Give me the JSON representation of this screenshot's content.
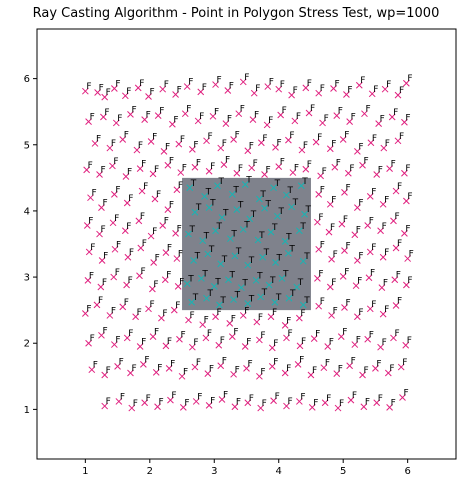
{
  "chart_data": {
    "type": "scatter",
    "title": "Ray Casting Algorithm - Point in Polygon Stress Test, wp=1000",
    "xlabel": "",
    "ylabel": "",
    "xlim": [
      0.25,
      6.75
    ],
    "ylim": [
      0.25,
      6.75
    ],
    "xticks": [
      1,
      2,
      3,
      4,
      5,
      6
    ],
    "yticks": [
      1,
      2,
      3,
      4,
      5,
      6
    ],
    "xtick_labels": [
      "1",
      "2",
      "3",
      "4",
      "5",
      "6"
    ],
    "ytick_labels": [
      "1",
      "2",
      "3",
      "4",
      "5",
      "6"
    ],
    "grid": false,
    "polygon": {
      "vertices": [
        [
          2.5,
          2.5
        ],
        [
          4.5,
          2.5
        ],
        [
          4.5,
          4.5
        ],
        [
          2.5,
          4.5
        ]
      ],
      "fill_color": "#7f828c"
    },
    "outside_marker": {
      "symbol": "x",
      "color": "#e0207f",
      "label": "F"
    },
    "inside_marker": {
      "symbol": "x",
      "color": "#1ab3b3",
      "label": "T"
    },
    "label_color": "#000000",
    "points": [
      [
        1.0,
        5.81,
        "F"
      ],
      [
        1.19,
        5.79,
        "F"
      ],
      [
        1.3,
        5.72,
        "F"
      ],
      [
        1.45,
        5.85,
        "F"
      ],
      [
        1.62,
        5.74,
        "F"
      ],
      [
        1.82,
        5.86,
        "F"
      ],
      [
        1.98,
        5.73,
        "F"
      ],
      [
        2.2,
        5.84,
        "F"
      ],
      [
        2.4,
        5.76,
        "F"
      ],
      [
        2.58,
        5.88,
        "F"
      ],
      [
        2.79,
        5.8,
        "F"
      ],
      [
        3.02,
        5.91,
        "F"
      ],
      [
        3.21,
        5.82,
        "F"
      ],
      [
        3.45,
        5.95,
        "F"
      ],
      [
        3.62,
        5.78,
        "F"
      ],
      [
        3.83,
        5.88,
        "F"
      ],
      [
        4.0,
        5.84,
        "F"
      ],
      [
        4.2,
        5.75,
        "F"
      ],
      [
        4.42,
        5.86,
        "F"
      ],
      [
        4.62,
        5.78,
        "F"
      ],
      [
        4.85,
        5.85,
        "F"
      ],
      [
        5.05,
        5.76,
        "F"
      ],
      [
        5.25,
        5.9,
        "F"
      ],
      [
        5.45,
        5.77,
        "F"
      ],
      [
        5.65,
        5.84,
        "F"
      ],
      [
        5.85,
        5.75,
        "F"
      ],
      [
        5.98,
        5.93,
        "F"
      ],
      [
        1.05,
        5.35,
        "F"
      ],
      [
        1.28,
        5.42,
        "F"
      ],
      [
        1.48,
        5.33,
        "F"
      ],
      [
        1.7,
        5.46,
        "F"
      ],
      [
        1.92,
        5.38,
        "F"
      ],
      [
        2.13,
        5.44,
        "F"
      ],
      [
        2.35,
        5.31,
        "F"
      ],
      [
        2.55,
        5.47,
        "F"
      ],
      [
        2.75,
        5.36,
        "F"
      ],
      [
        2.98,
        5.43,
        "F"
      ],
      [
        3.18,
        5.32,
        "F"
      ],
      [
        3.38,
        5.47,
        "F"
      ],
      [
        3.6,
        5.38,
        "F"
      ],
      [
        3.82,
        5.3,
        "F"
      ],
      [
        4.03,
        5.45,
        "F"
      ],
      [
        4.25,
        5.36,
        "F"
      ],
      [
        4.47,
        5.48,
        "F"
      ],
      [
        4.68,
        5.33,
        "F"
      ],
      [
        4.9,
        5.44,
        "F"
      ],
      [
        5.1,
        5.35,
        "F"
      ],
      [
        5.33,
        5.47,
        "F"
      ],
      [
        5.55,
        5.32,
        "F"
      ],
      [
        5.76,
        5.42,
        "F"
      ],
      [
        5.95,
        5.34,
        "F"
      ],
      [
        1.15,
        5.02,
        "F"
      ],
      [
        1.38,
        4.95,
        "F"
      ],
      [
        1.58,
        5.08,
        "F"
      ],
      [
        1.8,
        4.92,
        "F"
      ],
      [
        2.02,
        5.05,
        "F"
      ],
      [
        2.22,
        4.9,
        "F"
      ],
      [
        2.45,
        5.01,
        "F"
      ],
      [
        2.66,
        4.93,
        "F"
      ],
      [
        2.88,
        5.06,
        "F"
      ],
      [
        3.1,
        4.95,
        "F"
      ],
      [
        3.3,
        5.08,
        "F"
      ],
      [
        3.52,
        4.91,
        "F"
      ],
      [
        3.73,
        5.03,
        "F"
      ],
      [
        3.95,
        4.96,
        "F"
      ],
      [
        4.15,
        5.07,
        "F"
      ],
      [
        4.36,
        4.92,
        "F"
      ],
      [
        4.58,
        5.04,
        "F"
      ],
      [
        4.8,
        4.94,
        "F"
      ],
      [
        5.0,
        5.08,
        "F"
      ],
      [
        5.22,
        4.9,
        "F"
      ],
      [
        5.43,
        5.03,
        "F"
      ],
      [
        5.63,
        4.95,
        "F"
      ],
      [
        5.85,
        5.06,
        "F"
      ],
      [
        1.02,
        4.62,
        "F"
      ],
      [
        1.22,
        4.55,
        "F"
      ],
      [
        1.42,
        4.68,
        "F"
      ],
      [
        1.63,
        4.52,
        "F"
      ],
      [
        1.85,
        4.64,
        "F"
      ],
      [
        2.05,
        4.56,
        "F"
      ],
      [
        2.28,
        4.69,
        "F"
      ],
      [
        2.48,
        4.58,
        "F"
      ],
      [
        2.7,
        4.66,
        "F"
      ],
      [
        2.92,
        4.6,
        "F"
      ],
      [
        3.15,
        4.7,
        "F"
      ],
      [
        3.35,
        4.57,
        "F"
      ],
      [
        3.58,
        4.65,
        "F"
      ],
      [
        3.78,
        4.55,
        "F"
      ],
      [
        4.0,
        4.67,
        "F"
      ],
      [
        4.22,
        4.58,
        "F"
      ],
      [
        4.42,
        4.63,
        "F"
      ],
      [
        4.65,
        4.53,
        "F"
      ],
      [
        4.87,
        4.66,
        "F"
      ],
      [
        5.08,
        4.57,
        "F"
      ],
      [
        5.3,
        4.69,
        "F"
      ],
      [
        5.52,
        4.55,
        "F"
      ],
      [
        5.72,
        4.64,
        "F"
      ],
      [
        5.95,
        4.57,
        "F"
      ],
      [
        1.08,
        4.2,
        "F"
      ],
      [
        1.25,
        4.05,
        "F"
      ],
      [
        1.45,
        4.25,
        "F"
      ],
      [
        1.65,
        4.12,
        "F"
      ],
      [
        1.88,
        4.3,
        "F"
      ],
      [
        2.08,
        4.18,
        "F"
      ],
      [
        2.28,
        4.02,
        "F"
      ],
      [
        2.42,
        4.32,
        "F"
      ],
      [
        4.62,
        4.25,
        "F"
      ],
      [
        4.8,
        4.1,
        "F"
      ],
      [
        5.02,
        4.28,
        "F"
      ],
      [
        5.22,
        4.05,
        "F"
      ],
      [
        5.42,
        4.22,
        "F"
      ],
      [
        5.62,
        4.1,
        "F"
      ],
      [
        5.82,
        4.3,
        "F"
      ],
      [
        5.98,
        4.15,
        "F"
      ],
      [
        1.03,
        3.78,
        "F"
      ],
      [
        1.22,
        3.65,
        "F"
      ],
      [
        1.43,
        3.82,
        "F"
      ],
      [
        1.62,
        3.7,
        "F"
      ],
      [
        1.83,
        3.85,
        "F"
      ],
      [
        2.02,
        3.62,
        "F"
      ],
      [
        2.2,
        3.78,
        "F"
      ],
      [
        2.4,
        3.66,
        "F"
      ],
      [
        4.6,
        3.83,
        "F"
      ],
      [
        4.78,
        3.68,
        "F"
      ],
      [
        4.98,
        3.8,
        "F"
      ],
      [
        5.18,
        3.64,
        "F"
      ],
      [
        5.38,
        3.78,
        "F"
      ],
      [
        5.58,
        3.7,
        "F"
      ],
      [
        5.78,
        3.85,
        "F"
      ],
      [
        5.95,
        3.66,
        "F"
      ],
      [
        1.06,
        3.38,
        "F"
      ],
      [
        1.26,
        3.25,
        "F"
      ],
      [
        1.46,
        3.42,
        "F"
      ],
      [
        1.66,
        3.3,
        "F"
      ],
      [
        1.86,
        3.44,
        "F"
      ],
      [
        2.06,
        3.22,
        "F"
      ],
      [
        2.25,
        3.37,
        "F"
      ],
      [
        2.42,
        3.28,
        "F"
      ],
      [
        4.62,
        3.42,
        "F"
      ],
      [
        4.82,
        3.27,
        "F"
      ],
      [
        5.02,
        3.4,
        "F"
      ],
      [
        5.22,
        3.25,
        "F"
      ],
      [
        5.42,
        3.38,
        "F"
      ],
      [
        5.62,
        3.3,
        "F"
      ],
      [
        5.82,
        3.44,
        "F"
      ],
      [
        6.0,
        3.28,
        "F"
      ],
      [
        1.04,
        2.95,
        "F"
      ],
      [
        1.24,
        2.85,
        "F"
      ],
      [
        1.44,
        3.0,
        "F"
      ],
      [
        1.64,
        2.88,
        "F"
      ],
      [
        1.84,
        3.02,
        "F"
      ],
      [
        2.04,
        2.82,
        "F"
      ],
      [
        2.24,
        2.96,
        "F"
      ],
      [
        2.44,
        2.86,
        "F"
      ],
      [
        4.6,
        2.98,
        "F"
      ],
      [
        4.8,
        2.85,
        "F"
      ],
      [
        5.0,
        3.01,
        "F"
      ],
      [
        5.2,
        2.87,
        "F"
      ],
      [
        5.4,
        2.99,
        "F"
      ],
      [
        5.6,
        2.84,
        "F"
      ],
      [
        5.8,
        2.96,
        "F"
      ],
      [
        5.98,
        2.88,
        "F"
      ],
      [
        1.0,
        2.45,
        "F"
      ],
      [
        1.18,
        2.58,
        "F"
      ],
      [
        1.38,
        2.42,
        "F"
      ],
      [
        1.58,
        2.55,
        "F"
      ],
      [
        1.78,
        2.4,
        "F"
      ],
      [
        1.98,
        2.52,
        "F"
      ],
      [
        2.18,
        2.38,
        "F"
      ],
      [
        2.38,
        2.5,
        "F"
      ],
      [
        4.62,
        2.56,
        "F"
      ],
      [
        4.82,
        2.42,
        "F"
      ],
      [
        5.02,
        2.54,
        "F"
      ],
      [
        5.22,
        2.4,
        "F"
      ],
      [
        5.42,
        2.52,
        "F"
      ],
      [
        5.62,
        2.44,
        "F"
      ],
      [
        5.82,
        2.57,
        "F"
      ],
      [
        2.6,
        2.35,
        "F"
      ],
      [
        2.82,
        2.28,
        "F"
      ],
      [
        3.02,
        2.4,
        "F"
      ],
      [
        3.24,
        2.3,
        "F"
      ],
      [
        3.45,
        2.42,
        "F"
      ],
      [
        3.66,
        2.32,
        "F"
      ],
      [
        3.88,
        2.4,
        "F"
      ],
      [
        4.1,
        2.27,
        "F"
      ],
      [
        4.32,
        2.38,
        "F"
      ],
      [
        1.05,
        2.0,
        "F"
      ],
      [
        1.25,
        2.12,
        "F"
      ],
      [
        1.45,
        1.98,
        "F"
      ],
      [
        1.65,
        2.08,
        "F"
      ],
      [
        1.85,
        1.95,
        "F"
      ],
      [
        2.05,
        2.1,
        "F"
      ],
      [
        2.25,
        1.96,
        "F"
      ],
      [
        2.46,
        2.06,
        "F"
      ],
      [
        2.66,
        1.94,
        "F"
      ],
      [
        2.87,
        2.08,
        "F"
      ],
      [
        3.07,
        1.97,
        "F"
      ],
      [
        3.28,
        2.1,
        "F"
      ],
      [
        3.48,
        1.95,
        "F"
      ],
      [
        3.7,
        2.05,
        "F"
      ],
      [
        3.9,
        1.93,
        "F"
      ],
      [
        4.12,
        2.08,
        "F"
      ],
      [
        4.33,
        1.96,
        "F"
      ],
      [
        4.55,
        2.07,
        "F"
      ],
      [
        4.76,
        1.95,
        "F"
      ],
      [
        4.97,
        2.1,
        "F"
      ],
      [
        5.18,
        1.98,
        "F"
      ],
      [
        5.38,
        2.06,
        "F"
      ],
      [
        5.58,
        1.94,
        "F"
      ],
      [
        5.78,
        2.08,
        "F"
      ],
      [
        5.97,
        1.97,
        "F"
      ],
      [
        1.1,
        1.6,
        "F"
      ],
      [
        1.3,
        1.52,
        "F"
      ],
      [
        1.5,
        1.65,
        "F"
      ],
      [
        1.7,
        1.55,
        "F"
      ],
      [
        1.9,
        1.68,
        "F"
      ],
      [
        2.1,
        1.56,
        "F"
      ],
      [
        2.3,
        1.62,
        "F"
      ],
      [
        2.5,
        1.5,
        "F"
      ],
      [
        2.7,
        1.64,
        "F"
      ],
      [
        2.9,
        1.54,
        "F"
      ],
      [
        3.1,
        1.66,
        "F"
      ],
      [
        3.3,
        1.53,
        "F"
      ],
      [
        3.5,
        1.62,
        "F"
      ],
      [
        3.7,
        1.5,
        "F"
      ],
      [
        3.9,
        1.65,
        "F"
      ],
      [
        4.1,
        1.55,
        "F"
      ],
      [
        4.3,
        1.68,
        "F"
      ],
      [
        4.5,
        1.52,
        "F"
      ],
      [
        4.7,
        1.63,
        "F"
      ],
      [
        4.9,
        1.54,
        "F"
      ],
      [
        5.1,
        1.66,
        "F"
      ],
      [
        5.3,
        1.52,
        "F"
      ],
      [
        5.5,
        1.62,
        "F"
      ],
      [
        5.7,
        1.55,
        "F"
      ],
      [
        5.9,
        1.64,
        "F"
      ],
      [
        1.3,
        1.05,
        "F"
      ],
      [
        1.52,
        1.12,
        "F"
      ],
      [
        1.72,
        1.02,
        "F"
      ],
      [
        1.92,
        1.1,
        "F"
      ],
      [
        2.12,
        1.04,
        "F"
      ],
      [
        2.32,
        1.14,
        "F"
      ],
      [
        2.52,
        1.03,
        "F"
      ],
      [
        2.72,
        1.12,
        "F"
      ],
      [
        2.92,
        1.06,
        "F"
      ],
      [
        3.12,
        1.15,
        "F"
      ],
      [
        3.32,
        1.04,
        "F"
      ],
      [
        3.52,
        1.1,
        "F"
      ],
      [
        3.72,
        1.02,
        "F"
      ],
      [
        3.92,
        1.13,
        "F"
      ],
      [
        4.12,
        1.05,
        "F"
      ],
      [
        4.32,
        1.12,
        "F"
      ],
      [
        4.52,
        1.03,
        "F"
      ],
      [
        4.72,
        1.1,
        "F"
      ],
      [
        4.92,
        1.02,
        "F"
      ],
      [
        5.12,
        1.14,
        "F"
      ],
      [
        5.32,
        1.04,
        "F"
      ],
      [
        5.52,
        1.1,
        "F"
      ],
      [
        5.72,
        1.03,
        "F"
      ],
      [
        5.92,
        1.18,
        "F"
      ],
      [
        2.62,
        4.35,
        "T"
      ],
      [
        2.85,
        4.22,
        "T"
      ],
      [
        3.05,
        4.38,
        "T"
      ],
      [
        3.28,
        4.25,
        "T"
      ],
      [
        3.48,
        4.4,
        "T"
      ],
      [
        3.7,
        4.18,
        "T"
      ],
      [
        3.92,
        4.35,
        "T"
      ],
      [
        4.12,
        4.24,
        "T"
      ],
      [
        4.35,
        4.38,
        "T"
      ],
      [
        2.7,
        3.98,
        "T"
      ],
      [
        2.92,
        4.05,
        "T"
      ],
      [
        3.12,
        3.9,
        "T"
      ],
      [
        3.35,
        4.02,
        "T"
      ],
      [
        3.55,
        3.88,
        "T"
      ],
      [
        3.78,
        4.04,
        "T"
      ],
      [
        3.98,
        3.92,
        "T"
      ],
      [
        4.2,
        4.06,
        "T"
      ],
      [
        4.4,
        3.95,
        "T"
      ],
      [
        2.6,
        3.65,
        "T"
      ],
      [
        2.82,
        3.55,
        "T"
      ],
      [
        3.02,
        3.7,
        "T"
      ],
      [
        3.25,
        3.58,
        "T"
      ],
      [
        3.45,
        3.72,
        "T"
      ],
      [
        3.68,
        3.56,
        "T"
      ],
      [
        3.88,
        3.68,
        "T"
      ],
      [
        4.1,
        3.54,
        "T"
      ],
      [
        4.32,
        3.7,
        "T"
      ],
      [
        2.68,
        3.25,
        "T"
      ],
      [
        2.9,
        3.35,
        "T"
      ],
      [
        3.1,
        3.2,
        "T"
      ],
      [
        3.32,
        3.32,
        "T"
      ],
      [
        3.52,
        3.18,
        "T"
      ],
      [
        3.75,
        3.3,
        "T"
      ],
      [
        3.95,
        3.22,
        "T"
      ],
      [
        4.15,
        3.36,
        "T"
      ],
      [
        4.38,
        3.24,
        "T"
      ],
      [
        2.58,
        2.9,
        "T"
      ],
      [
        2.8,
        2.98,
        "T"
      ],
      [
        3.0,
        2.86,
        "T"
      ],
      [
        3.22,
        2.96,
        "T"
      ],
      [
        3.42,
        2.84,
        "T"
      ],
      [
        3.65,
        2.95,
        "T"
      ],
      [
        3.85,
        2.88,
        "T"
      ],
      [
        4.05,
        2.98,
        "T"
      ],
      [
        4.28,
        2.85,
        "T"
      ],
      [
        2.65,
        2.62,
        "T"
      ],
      [
        2.88,
        2.68,
        "T"
      ],
      [
        3.08,
        2.58,
        "T"
      ],
      [
        3.3,
        2.66,
        "T"
      ],
      [
        3.52,
        2.6,
        "T"
      ],
      [
        3.72,
        2.7,
        "T"
      ],
      [
        3.94,
        2.62,
        "T"
      ],
      [
        4.16,
        2.68,
        "T"
      ],
      [
        4.38,
        2.58,
        "T"
      ]
    ]
  }
}
